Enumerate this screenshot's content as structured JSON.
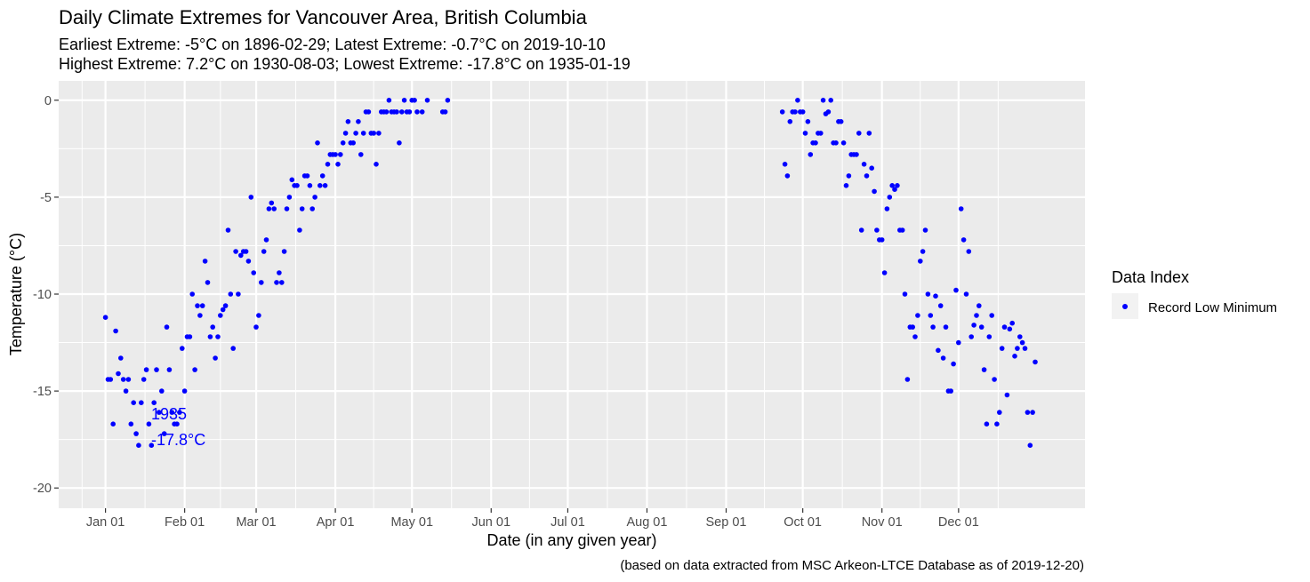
{
  "chart_data": {
    "type": "scatter",
    "title": "Daily Climate Extremes for Vancouver Area, British Columbia",
    "subtitle_lines": [
      "Earliest Extreme: -5°C on 1896-02-29; Latest Extreme: -0.7°C on 2019-10-10",
      "Highest Extreme: 7.2°C on 1930-08-03; Lowest Extreme: -17.8°C on 1935-01-19"
    ],
    "xlabel": "Date (in any given year)",
    "ylabel": "Temperature (°C)",
    "caption": "(based on data extracted from MSC Arkeon-LTCE Database as of 2019-12-20)",
    "x_ticks": [
      "Jan 01",
      "Feb 01",
      "Mar 01",
      "Apr 01",
      "May 01",
      "Jun 01",
      "Jul 01",
      "Aug 01",
      "Sep 01",
      "Oct 01",
      "Nov 01",
      "Dec 01"
    ],
    "y_ticks": [
      "0",
      "-5",
      "-10",
      "-15",
      "-20"
    ],
    "ylim": [
      -21,
      1
    ],
    "grid": true,
    "legend": {
      "title": "Data Index",
      "placement": "right",
      "entries": [
        "Record Low Minimum"
      ]
    },
    "annotation": {
      "x": 19,
      "y": -17.8,
      "lines": [
        "1935",
        "-17.8°C"
      ]
    },
    "colors": {
      "points": "#0000ff",
      "panel": "#ebebeb",
      "grid": "#ffffff",
      "annotation": "#0000ff"
    },
    "series": [
      {
        "name": "Record Low Minimum",
        "x": [
          1,
          2,
          3,
          4,
          5,
          6,
          7,
          8,
          9,
          10,
          11,
          12,
          13,
          14,
          15,
          16,
          17,
          18,
          19,
          20,
          21,
          22,
          23,
          24,
          25,
          26,
          27,
          28,
          29,
          30,
          31,
          32,
          33,
          34,
          35,
          36,
          37,
          38,
          39,
          40,
          41,
          42,
          43,
          44,
          45,
          46,
          47,
          48,
          49,
          50,
          51,
          52,
          53,
          54,
          55,
          56,
          57,
          58,
          59,
          60,
          61,
          62,
          63,
          64,
          65,
          66,
          67,
          68,
          69,
          70,
          71,
          72,
          73,
          74,
          75,
          76,
          77,
          78,
          79,
          80,
          81,
          82,
          83,
          84,
          85,
          86,
          87,
          88,
          89,
          90,
          91,
          92,
          93,
          94,
          95,
          96,
          97,
          98,
          99,
          100,
          101,
          102,
          103,
          104,
          105,
          106,
          107,
          108,
          109,
          110,
          111,
          112,
          113,
          114,
          115,
          116,
          117,
          118,
          119,
          120,
          121,
          122,
          123,
          125,
          127,
          133,
          134,
          135,
          266,
          267,
          268,
          269,
          270,
          271,
          272,
          273,
          274,
          275,
          276,
          277,
          278,
          279,
          280,
          281,
          282,
          283,
          284,
          285,
          286,
          287,
          288,
          289,
          290,
          291,
          292,
          293,
          294,
          295,
          296,
          297,
          298,
          299,
          300,
          301,
          302,
          303,
          304,
          305,
          306,
          307,
          308,
          309,
          310,
          311,
          312,
          313,
          314,
          315,
          316,
          317,
          318,
          319,
          320,
          321,
          322,
          323,
          324,
          325,
          326,
          327,
          328,
          329,
          330,
          331,
          332,
          333,
          334,
          335,
          336,
          337,
          338,
          339,
          340,
          341,
          342,
          343,
          344,
          345,
          346,
          347,
          348,
          349,
          350,
          351,
          352,
          353,
          354,
          355,
          356,
          357,
          358,
          359,
          360,
          361,
          362,
          363,
          364,
          365
        ],
        "y": [
          -11.2,
          -14.4,
          -14.4,
          -16.7,
          -11.9,
          -14.1,
          -13.3,
          -14.4,
          -15.0,
          -14.4,
          -16.7,
          -15.6,
          -17.2,
          -17.8,
          -15.6,
          -14.4,
          -13.9,
          -16.7,
          -17.8,
          -15.6,
          -13.9,
          -16.1,
          -15.0,
          -17.2,
          -11.7,
          -13.9,
          -16.1,
          -16.7,
          -16.7,
          -16.1,
          -12.8,
          -15.0,
          -12.2,
          -12.2,
          -10.0,
          -13.9,
          -10.6,
          -11.1,
          -10.6,
          -8.3,
          -9.4,
          -12.2,
          -11.7,
          -13.3,
          -12.2,
          -11.1,
          -10.8,
          -10.6,
          -6.7,
          -10.0,
          -12.8,
          -7.8,
          -10.0,
          -8.0,
          -7.8,
          -7.8,
          -8.3,
          -5.0,
          -8.9,
          -11.7,
          -11.1,
          -9.4,
          -7.8,
          -7.2,
          -5.6,
          -5.3,
          -5.6,
          -9.4,
          -8.9,
          -9.4,
          -7.8,
          -5.6,
          -5.0,
          -4.1,
          -4.4,
          -4.4,
          -6.7,
          -5.6,
          -3.9,
          -3.9,
          -4.4,
          -5.6,
          -5.0,
          -2.2,
          -4.4,
          -3.9,
          -4.4,
          -3.3,
          -2.8,
          -2.8,
          -2.8,
          -3.3,
          -2.8,
          -2.2,
          -1.7,
          -1.1,
          -2.2,
          -2.2,
          -1.7,
          -1.1,
          -2.8,
          -1.7,
          -0.6,
          -0.6,
          -1.7,
          -1.7,
          -3.3,
          -1.7,
          -0.6,
          -0.6,
          -0.6,
          0.0,
          -0.6,
          -0.6,
          -0.6,
          -2.2,
          -0.6,
          0.0,
          -0.6,
          -0.6,
          0.0,
          0.0,
          -0.6,
          -0.6,
          0.0,
          -0.6,
          -0.6,
          0.0,
          -0.6,
          -3.3,
          -3.9,
          -1.1,
          -0.6,
          -0.6,
          0.0,
          -0.6,
          -0.6,
          -1.7,
          -1.1,
          -2.8,
          -2.2,
          -2.2,
          -1.7,
          -1.7,
          0.0,
          -0.7,
          -0.6,
          0.0,
          -2.2,
          -2.2,
          -1.1,
          -1.1,
          -2.2,
          -4.4,
          -3.9,
          -2.8,
          -2.8,
          -2.8,
          -1.7,
          -6.7,
          -3.3,
          -3.9,
          -1.7,
          -3.5,
          -4.7,
          -6.7,
          -7.2,
          -7.2,
          -8.9,
          -5.6,
          -5.0,
          -4.4,
          -4.6,
          -4.4,
          -6.7,
          -6.7,
          -10.0,
          -14.4,
          -11.7,
          -11.7,
          -12.2,
          -11.1,
          -8.3,
          -7.8,
          -6.7,
          -10.0,
          -11.1,
          -11.7,
          -10.1,
          -12.9,
          -10.6,
          -13.3,
          -11.7,
          -15.0,
          -15.0,
          -13.6,
          -9.8,
          -12.5,
          -5.6,
          -7.2,
          -10.0,
          -7.8,
          -12.2,
          -11.6,
          -11.1,
          -10.6,
          -11.7,
          -13.9,
          -16.7,
          -12.2,
          -11.1,
          -14.4,
          -16.7,
          -16.1,
          -12.8,
          -11.7,
          -15.2,
          -11.8,
          -11.5,
          -13.2,
          -12.8,
          -12.2,
          -12.5,
          -12.8,
          -16.1,
          -17.8,
          -16.1,
          -13.5
        ]
      }
    ]
  }
}
